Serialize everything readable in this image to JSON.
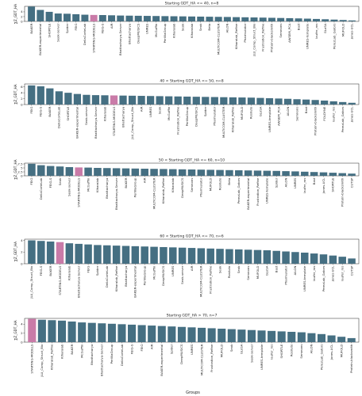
{
  "colors": {
    "bar": "#456f82",
    "highlight": "#c97ba8"
  },
  "highlight_label": "STARTING-MODELS",
  "xlabel": "Groups",
  "ylabel": "∑Z_GDT_HA",
  "chart_data": [
    {
      "type": "bar",
      "title": "Starting GDT_HA <= 40, n=8",
      "ylabel": "∑Z_GDT_HA",
      "ylim": [
        0,
        6.3
      ],
      "yticks": [
        0,
        2,
        4
      ],
      "categories": [
        "BAKER",
        "BAKER-experimental",
        "SHORTLE",
        "Seok-server",
        "Spider",
        "FEIG",
        "DellaCorteLab",
        "STARTING-MODELS",
        "FEIG-S",
        "AIR",
        "Bhattacharya-Server",
        "Bhattacharya",
        "DeepMUSICS",
        "UNRES",
        "McGuffin",
        "PerilliaGroup",
        "Kiharalab",
        "Seok",
        "Kiharalab",
        "Seok",
        "Beta",
        "MULTICOM-CLUSTER",
        "AILON",
        "Kiharalab_Refine",
        "Pharmulator",
        "JLU_Comp_Struct_Bio",
        "Frustration_Refine",
        "Protein-blacksmith",
        "Semnons",
        "AWSEM_PCA",
        "Bast",
        "UNRES-template",
        "laufer_ros",
        "GLoSA",
        "PerezLab_Gators",
        "MUFOLD",
        "Jones-UCL"
      ],
      "values": [
        6.2,
        4.8,
        4.0,
        3.3,
        3.2,
        3.0,
        2.8,
        2.7,
        2.65,
        2.55,
        2.45,
        2.4,
        2.35,
        2.3,
        2.25,
        2.2,
        2.15,
        2.1,
        2.05,
        2.0,
        1.95,
        1.9,
        1.85,
        1.78,
        1.72,
        1.65,
        1.58,
        1.5,
        1.42,
        1.35,
        1.25,
        1.15,
        1.02,
        0.9,
        0.75,
        0.58,
        0.4
      ]
    },
    {
      "type": "bar",
      "title": "40 < Starting GDT_HA <= 50, n=8",
      "ylabel": "∑Z_GDT_HA",
      "ylim": [
        0,
        7.0
      ],
      "yticks": [
        0,
        2,
        4,
        6
      ],
      "categories": [
        "FEIG",
        "FEIG-S",
        "BAKER",
        "DellaCorteLab",
        "SHORTLE",
        "BAKER-experimental",
        "Seok-server",
        "Bhattacharya-Server",
        "Kiharalab",
        "STARTING-MODELS",
        "Bhattacharya",
        "JLU_Comp_Struct_Bio",
        "AIR",
        "UNRES",
        "Seok",
        "McGuffin",
        "Frustration_Refine",
        "PerilliaGroup",
        "DeepMUSICS",
        "Spider",
        "Pharmulator",
        "MULTICOM-CLUSTER",
        "Kiharalab_Refine",
        "MUFOLD",
        "Rosiluto",
        "GLoSA",
        "UNRES-template",
        "AWSEM_PCA",
        "AILON",
        "Semnons",
        "Bast",
        "Protein-blacksmith",
        "FOLDYNE",
        "laufer_ros",
        "PerezLab_Gators",
        "Jones-UCL"
      ],
      "values": [
        6.5,
        6.2,
        5.5,
        4.5,
        4.0,
        3.6,
        3.3,
        3.2,
        3.15,
        3.1,
        3.05,
        3.0,
        2.95,
        2.9,
        2.85,
        2.8,
        2.75,
        2.7,
        2.65,
        2.6,
        2.55,
        2.5,
        2.45,
        2.4,
        2.35,
        2.25,
        2.15,
        2.05,
        1.95,
        1.82,
        1.7,
        1.55,
        1.35,
        1.1,
        0.85,
        0.6
      ]
    },
    {
      "type": "bar",
      "title": "50 < Starting GDT_HA <= 60, n=10",
      "ylabel": "∑Z_GDT_HA",
      "ylim": [
        0,
        8.0
      ],
      "yticks": [
        0,
        2.5,
        5.0,
        7.5
      ],
      "categories": [
        "FEIG",
        "DellaCorteLab",
        "FEIG-S",
        "Seok",
        "Seok-server",
        "STARTING-MODELS",
        "McGuffin",
        "Kiharalab",
        "Bhattacharya",
        "Bhattacharya-Server",
        "BAKER",
        "PerilliaGroup",
        "AIR",
        "MULTICOM-CLUSTER",
        "Kiharalab_Refine",
        "Kiharalab",
        "DeepMUSICS",
        "Semnons",
        "Pharmulator",
        "MUFOLD",
        "Rosiluto",
        "Beta",
        "PerezLab_Gators",
        "BAKER-experimental",
        "Frustration_Refine",
        "UNRES-template",
        "Spider",
        "AILON",
        "UNRES",
        "laufer_ros",
        "Bast",
        "Jones-UCL",
        "SHORTLE",
        "Protein-blacksmith",
        "CUTSP"
      ],
      "values": [
        7.6,
        6.7,
        6.2,
        5.9,
        5.5,
        5.3,
        5.2,
        5.0,
        4.9,
        4.8,
        4.7,
        4.6,
        4.5,
        4.4,
        4.3,
        4.2,
        4.1,
        4.0,
        3.9,
        3.8,
        3.7,
        3.6,
        3.5,
        3.4,
        3.3,
        3.2,
        3.1,
        2.95,
        2.8,
        2.6,
        2.4,
        2.2,
        1.95,
        1.7,
        1.4
      ]
    },
    {
      "type": "bar",
      "title": "60 < Starting GDT_HA <= 70, n=6",
      "ylabel": "∑Z_GDT_HA",
      "ylim": [
        0,
        4.2
      ],
      "yticks": [
        0,
        2,
        4
      ],
      "categories": [
        "JLU_Comp_Struct_Bio",
        "FEIG-S",
        "BAKER",
        "STARTING-MODELS",
        "Kiharalab",
        "Bhattacharya-Server",
        "FEIG",
        "Spider",
        "DellaCorteLab",
        "Kiharalab_Refine",
        "Bhattacharya",
        "BAKER-experimental",
        "PerilliaGroup",
        "McGuffin",
        "DeepMUSICS",
        "UNRES",
        "Seok-server",
        "AIR",
        "MULTICOM-CLUSTER",
        "Frustration_Refine",
        "Seok",
        "Rosiluto",
        "Seok",
        "Semnons",
        "MUFOLD",
        "GLoSA",
        "Bast",
        "Pharmulator",
        "AILON",
        "UNRES-template",
        "laufer_ros",
        "PerezLab_Gators",
        "Jones-UCL",
        "laufer_ros",
        "CUTSP"
      ],
      "values": [
        4.0,
        3.9,
        3.8,
        3.7,
        3.5,
        3.4,
        3.3,
        3.2,
        3.15,
        3.1,
        3.05,
        3.0,
        2.95,
        2.9,
        2.85,
        2.8,
        2.75,
        2.7,
        2.65,
        2.6,
        2.55,
        2.5,
        2.45,
        2.4,
        2.35,
        2.3,
        2.2,
        2.1,
        2.0,
        1.9,
        1.75,
        1.6,
        1.4,
        1.2,
        0.9
      ]
    },
    {
      "type": "bar",
      "title": "Starting GDT_HA > 70, n=7",
      "ylabel": "∑Z_GDT_HA",
      "ylim": [
        0,
        5.3
      ],
      "yticks": [
        0,
        2,
        4
      ],
      "categories": [
        "STARTING-MODELS",
        "JLU_Comp_Struct_Bio",
        "Kiharalab_Refine",
        "Kiharalab",
        "BAKER",
        "McGuffin",
        "Bhattacharya",
        "Bhattacharya-Server",
        "PerilliaGroup",
        "DellaCorteLab",
        "FEIG-S",
        "FEIG",
        "AIR",
        "BAKER-experimental",
        "Spider",
        "DeepMUSICS",
        "UNRES",
        "MULTICOM-CLUSTER",
        "Frustration_Refine",
        "MUFOLD",
        "Seok",
        "GLoSA",
        "Seok-server",
        "UNRES-template",
        "laufer_ros",
        "SHORTLE",
        "Rosiluto",
        "Semnons",
        "AILON",
        "PerezLab_Gators",
        "Jones-UCL",
        "MUFOLD",
        "Protein-blacksmith"
      ],
      "values": [
        5.2,
        5.0,
        4.9,
        4.8,
        4.6,
        4.4,
        4.3,
        4.2,
        4.1,
        4.0,
        3.9,
        3.8,
        3.7,
        3.6,
        3.5,
        3.4,
        3.3,
        3.2,
        3.1,
        3.0,
        2.9,
        2.8,
        2.7,
        2.6,
        2.5,
        2.4,
        2.3,
        2.2,
        2.0,
        1.8,
        1.5,
        1.2,
        0.9
      ]
    }
  ]
}
